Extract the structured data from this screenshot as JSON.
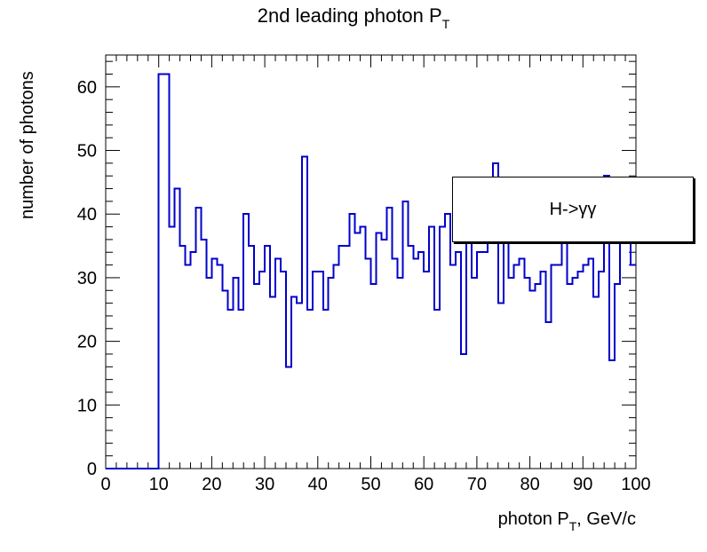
{
  "chart_data": {
    "type": "histogram",
    "title": "2nd leading photon P",
    "title_subscript": "T",
    "xlabel": "photon P",
    "xlabel_subscript": "T",
    "xlabel_suffix": ", GeV/c",
    "ylabel": "number of photons",
    "xlim": [
      0,
      100
    ],
    "ylim": [
      0,
      65
    ],
    "bin_width": 1,
    "xticks": [
      0,
      10,
      20,
      30,
      40,
      50,
      60,
      70,
      80,
      90,
      100
    ],
    "yticks": [
      0,
      10,
      20,
      30,
      40,
      50,
      60
    ],
    "line_color": "#0000cc",
    "legend": {
      "text": "H->γγ",
      "placement": "top-right"
    },
    "bin_edges_start": 0,
    "values": [
      0,
      0,
      0,
      0,
      0,
      0,
      0,
      0,
      0,
      0,
      62,
      62,
      38,
      44,
      35,
      32,
      34,
      41,
      36,
      30,
      33,
      32,
      28,
      25,
      30,
      25,
      40,
      35,
      29,
      31,
      35,
      27,
      33,
      31,
      16,
      27,
      26,
      49,
      25,
      31,
      31,
      25,
      30,
      32,
      35,
      35,
      40,
      37,
      38,
      33,
      29,
      37,
      36,
      41,
      33,
      30,
      42,
      35,
      33,
      34,
      31,
      38,
      25,
      38,
      40,
      32,
      34,
      18,
      39,
      30,
      34,
      34,
      36,
      48,
      26,
      37,
      30,
      32,
      33,
      30,
      28,
      29,
      31,
      23,
      32,
      32,
      36,
      29,
      30,
      31,
      32,
      33,
      27,
      31,
      46,
      17,
      29,
      38,
      38,
      32
    ]
  }
}
